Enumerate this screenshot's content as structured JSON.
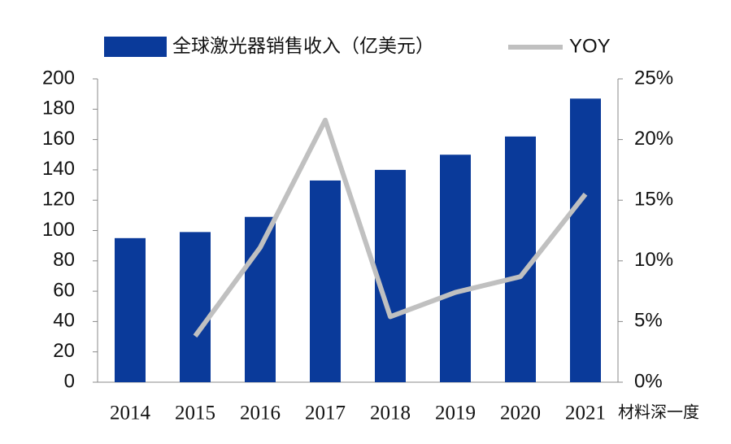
{
  "chart_data": {
    "type": "bar",
    "categories": [
      "2014",
      "2015",
      "2016",
      "2017",
      "2018",
      "2019",
      "2020",
      "2021"
    ],
    "series": [
      {
        "name": "全球激光器销售收入（亿美元）",
        "color": "#0a3a9a",
        "type": "bar",
        "values": [
          95,
          99,
          109,
          133,
          140,
          150,
          162,
          187
        ]
      },
      {
        "name": "YOY",
        "color": "#c0c0c0",
        "type": "line",
        "axis": "y2",
        "values": [
          null,
          3.8,
          11.1,
          21.6,
          5.4,
          7.4,
          8.7,
          15.5
        ]
      }
    ],
    "ylim": [
      0,
      200
    ],
    "yticks": [
      0,
      20,
      40,
      60,
      80,
      100,
      120,
      140,
      160,
      180,
      200
    ],
    "y2lim": [
      0,
      25
    ],
    "y2ticks": [
      {
        "value": 0,
        "label": "0%"
      },
      {
        "value": 5,
        "label": "5%"
      },
      {
        "value": 10,
        "label": "10%"
      },
      {
        "value": 15,
        "label": "15%"
      },
      {
        "value": 20,
        "label": "20%"
      },
      {
        "value": 25,
        "label": "25%"
      }
    ],
    "legend": "top",
    "watermark": "材料深一度"
  }
}
